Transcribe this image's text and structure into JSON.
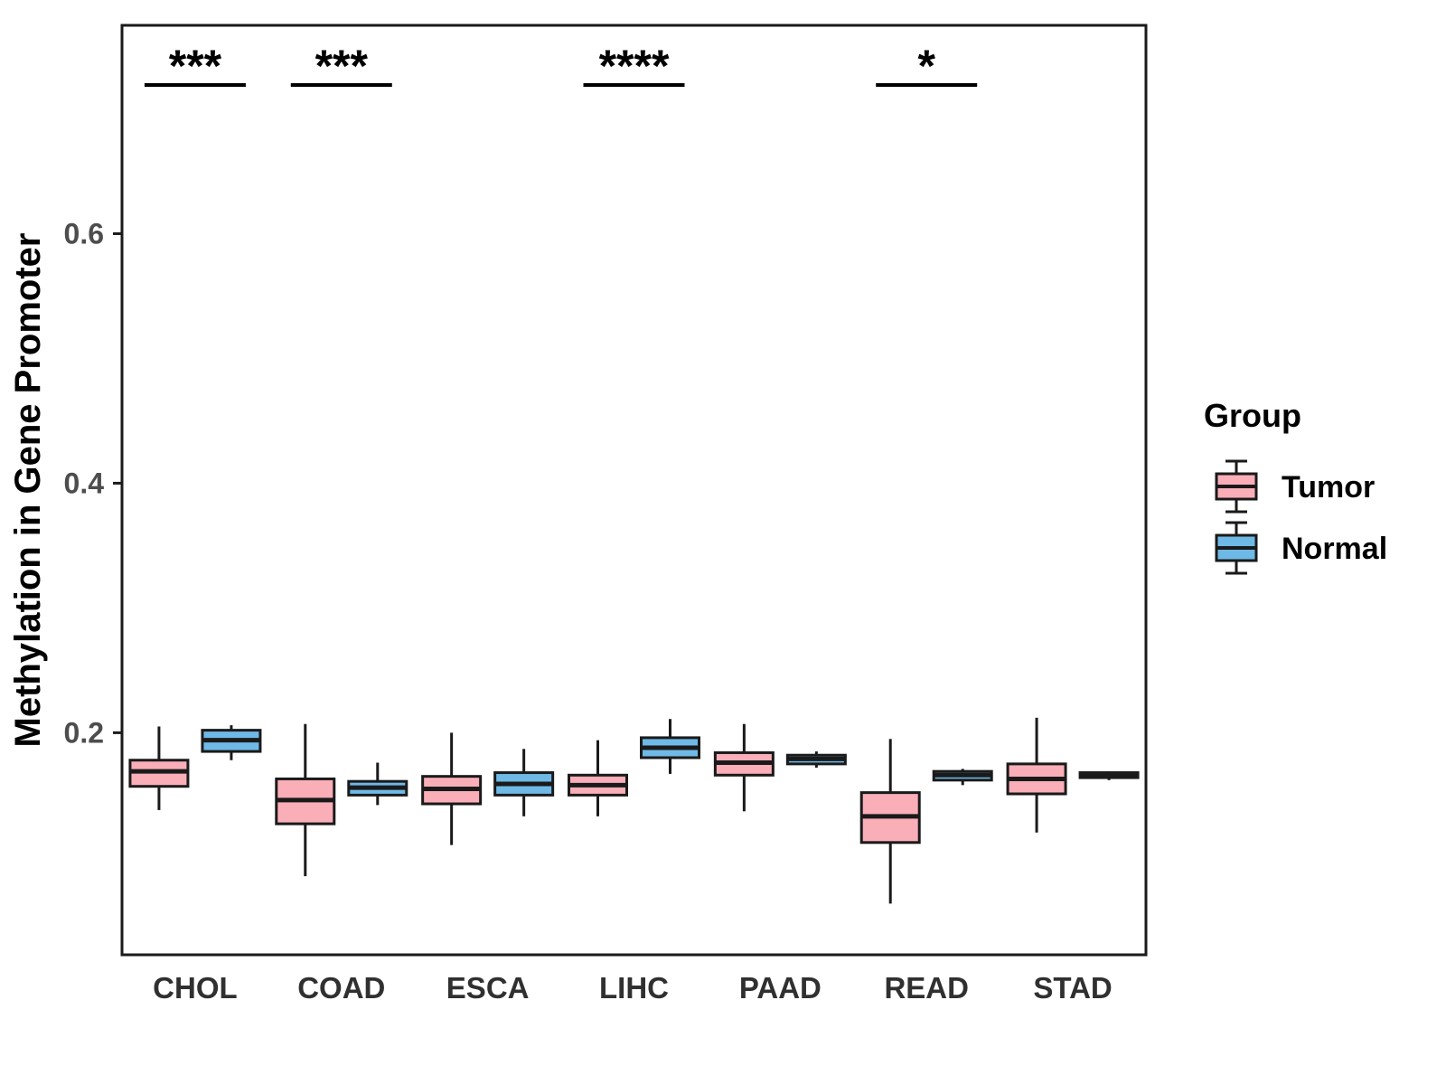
{
  "chart_data": {
    "type": "boxplot",
    "title": "",
    "xlabel": "",
    "ylabel": "Methylation in Gene Promoter",
    "categories": [
      "CHOL",
      "COAD",
      "ESCA",
      "LIHC",
      "PAAD",
      "READ",
      "STAD"
    ],
    "yticks": [
      0.2,
      0.4,
      0.6
    ],
    "ylim": [
      0.022,
      0.767
    ],
    "grid": false,
    "panel_border_color": "#1a1a1a",
    "text_color": "#303030",
    "tick_label_color": "#4d4d4d",
    "legend": {
      "title": "Group",
      "position": "right",
      "items": [
        {
          "label": "Tumor",
          "color": "#F9AEB8"
        },
        {
          "label": "Normal",
          "color": "#6FB9E6"
        }
      ]
    },
    "series": [
      {
        "name": "Tumor",
        "color": "#F9AEB8",
        "boxes": [
          {
            "low": 0.138,
            "q1": 0.157,
            "median": 0.169,
            "q3": 0.178,
            "high": 0.205
          },
          {
            "low": 0.085,
            "q1": 0.127,
            "median": 0.146,
            "q3": 0.163,
            "high": 0.207
          },
          {
            "low": 0.11,
            "q1": 0.143,
            "median": 0.155,
            "q3": 0.165,
            "high": 0.2
          },
          {
            "low": 0.133,
            "q1": 0.15,
            "median": 0.158,
            "q3": 0.166,
            "high": 0.194
          },
          {
            "low": 0.137,
            "q1": 0.166,
            "median": 0.176,
            "q3": 0.184,
            "high": 0.207
          },
          {
            "low": 0.063,
            "q1": 0.112,
            "median": 0.133,
            "q3": 0.152,
            "high": 0.195
          },
          {
            "low": 0.12,
            "q1": 0.151,
            "median": 0.163,
            "q3": 0.175,
            "high": 0.212
          }
        ]
      },
      {
        "name": "Normal",
        "color": "#6FB9E6",
        "boxes": [
          {
            "low": 0.178,
            "q1": 0.185,
            "median": 0.194,
            "q3": 0.202,
            "high": 0.206
          },
          {
            "low": 0.142,
            "q1": 0.15,
            "median": 0.156,
            "q3": 0.161,
            "high": 0.176
          },
          {
            "low": 0.133,
            "q1": 0.15,
            "median": 0.159,
            "q3": 0.168,
            "high": 0.187
          },
          {
            "low": 0.167,
            "q1": 0.18,
            "median": 0.188,
            "q3": 0.196,
            "high": 0.211
          },
          {
            "low": 0.172,
            "q1": 0.175,
            "median": 0.179,
            "q3": 0.182,
            "high": 0.185
          },
          {
            "low": 0.158,
            "q1": 0.162,
            "median": 0.166,
            "q3": 0.169,
            "high": 0.171
          },
          {
            "low": 0.162,
            "q1": 0.164,
            "median": 0.166,
            "q3": 0.168,
            "high": 0.169
          }
        ]
      }
    ],
    "significance": [
      {
        "category": "CHOL",
        "label": "***"
      },
      {
        "category": "COAD",
        "label": "***"
      },
      {
        "category": "LIHC",
        "label": "****"
      },
      {
        "category": "READ",
        "label": "*"
      }
    ]
  }
}
